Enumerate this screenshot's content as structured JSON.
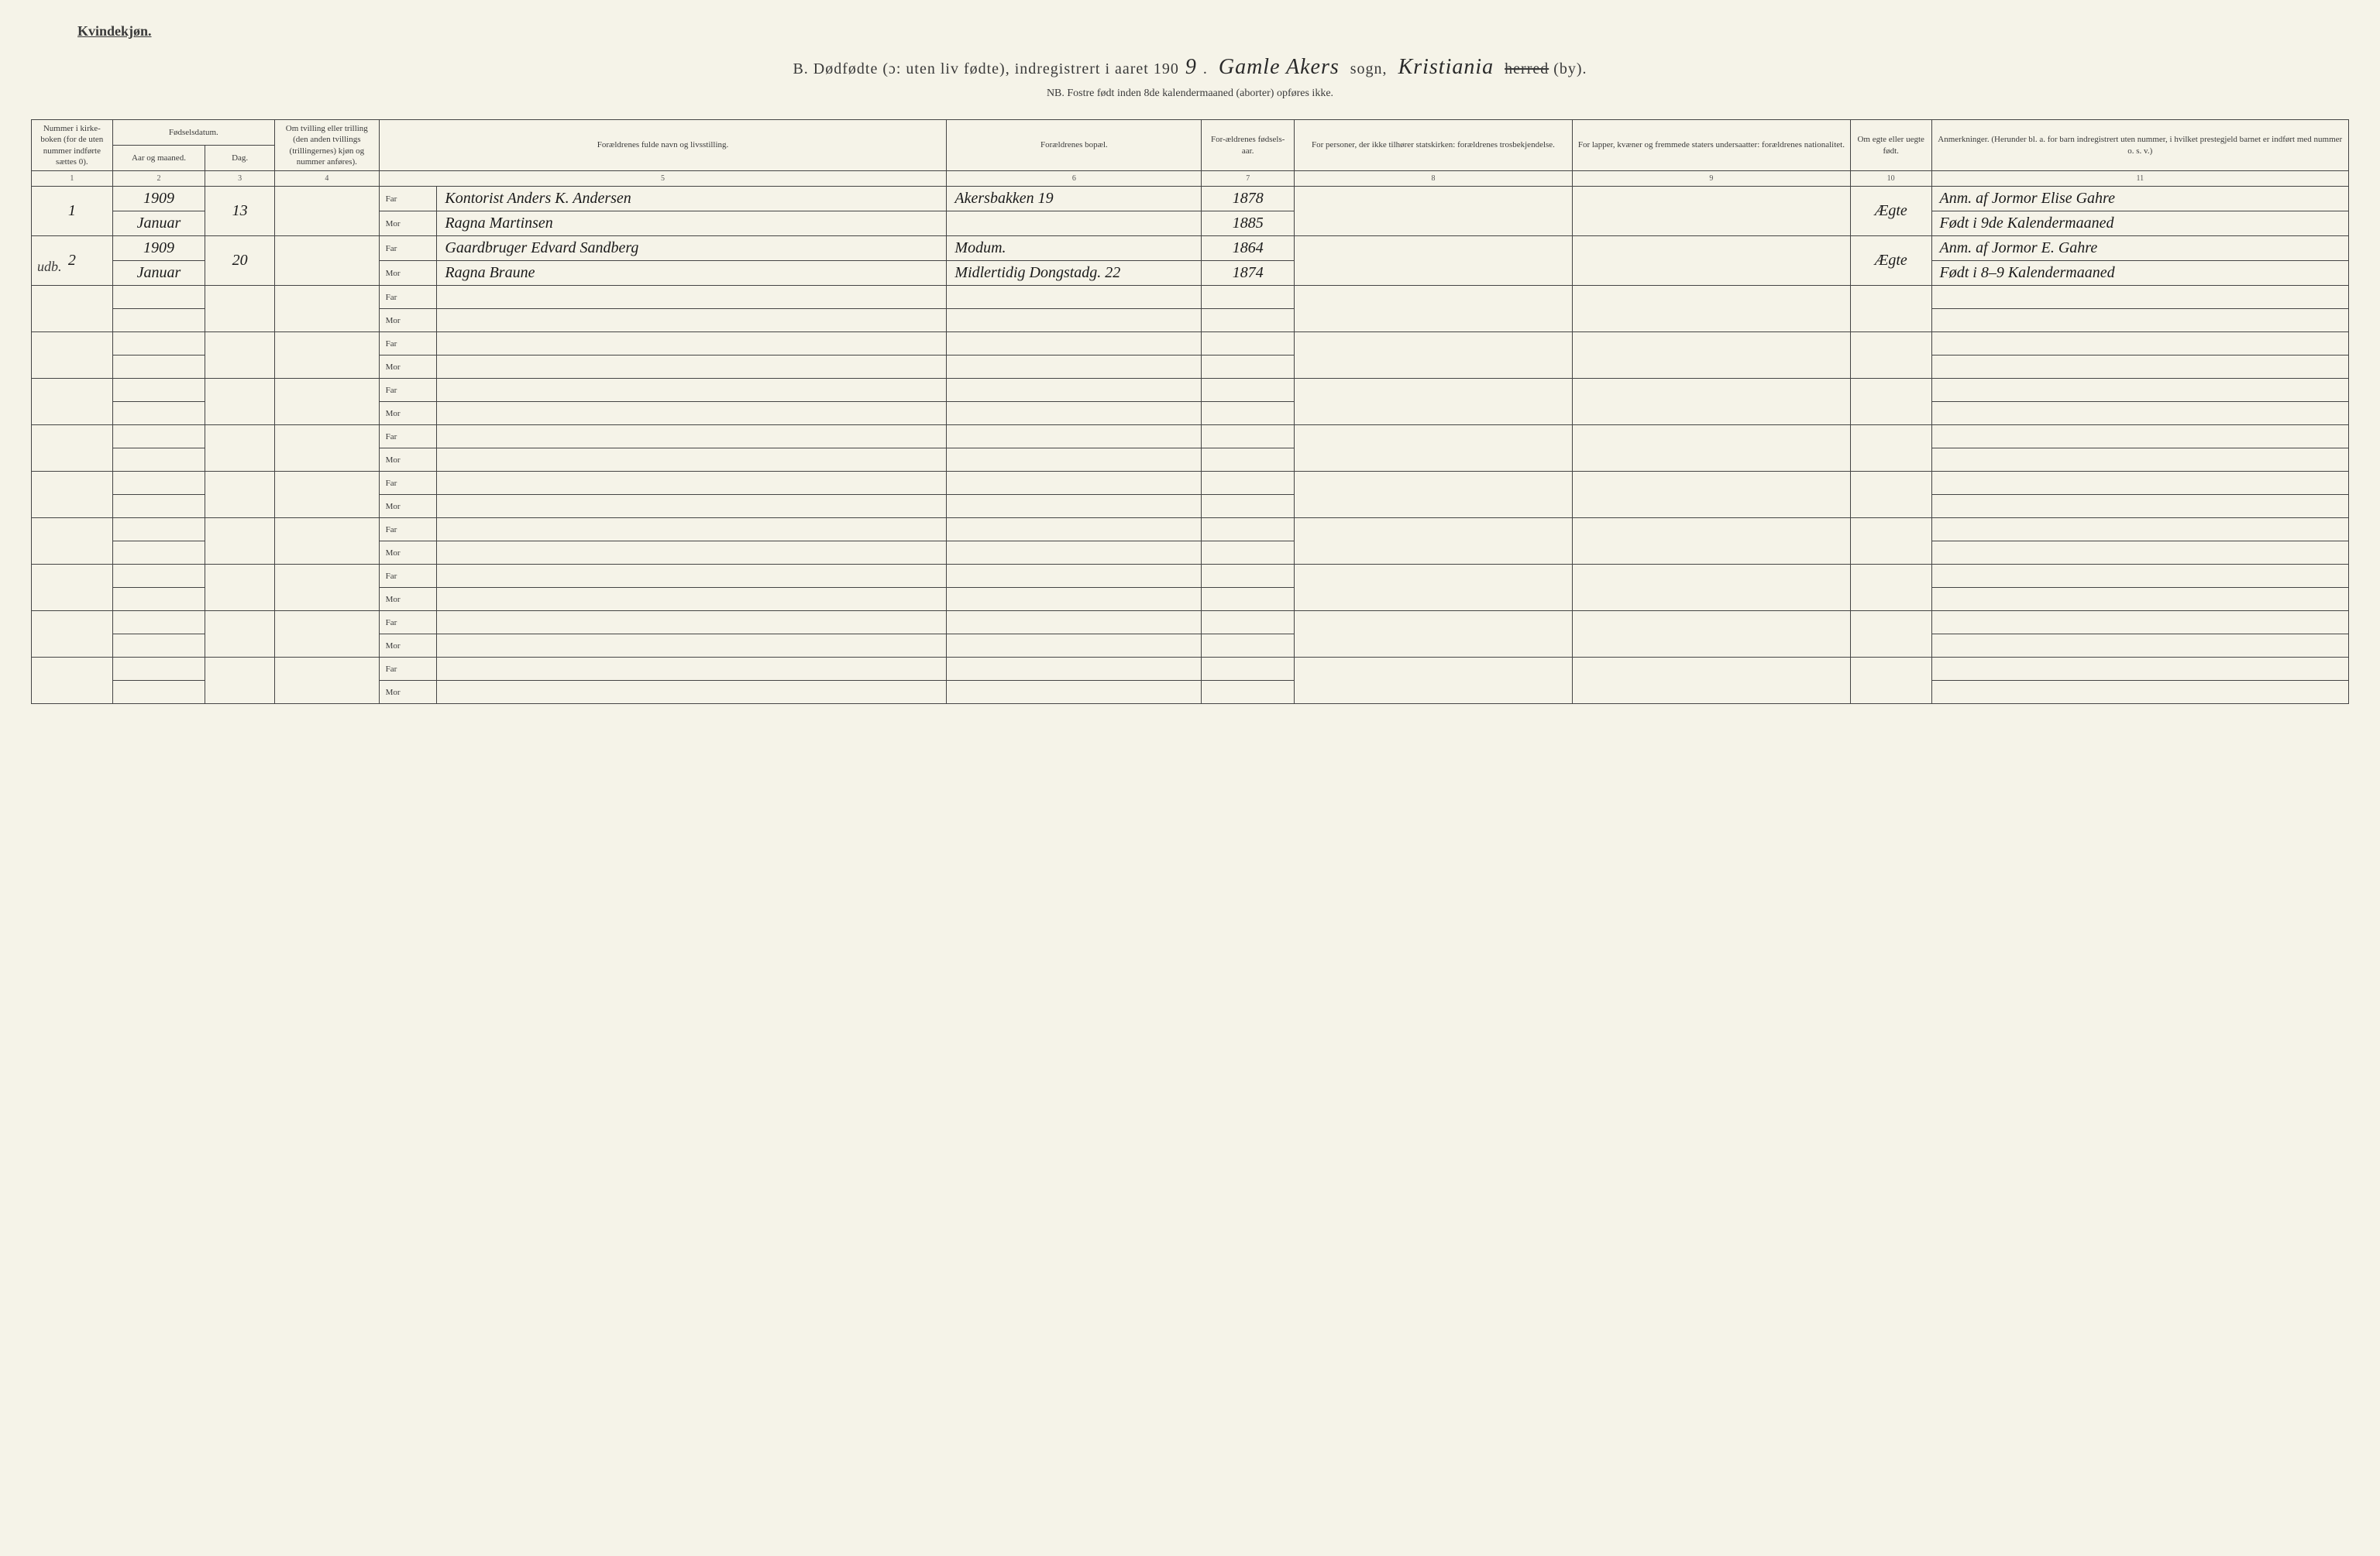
{
  "header": {
    "gender": "Kvindekjøn.",
    "title_prefix": "B.  Dødfødte (ɔ: uten liv fødte), indregistrert i aaret 190",
    "year_suffix": "9",
    "sogn_label": "sogn,",
    "sogn_value": "Gamle Akers",
    "herred_label_struck": "herred",
    "by_label": "(by).",
    "herred_value": "Kristiania",
    "subtitle": "NB. Fostre født inden 8de kalendermaaned (aborter) opføres ikke."
  },
  "columns": {
    "c1": "Nummer i kirke-boken (for de uten nummer indførte sættes 0).",
    "c2_group": "Fødselsdatum.",
    "c2a": "Aar og maaned.",
    "c2b": "Dag.",
    "c4": "Om tvilling eller trilling (den anden tvillings (trillingernes) kjøn og nummer anføres).",
    "c5": "Forældrenes fulde navn og livsstilling.",
    "c6": "Forældrenes bopæl.",
    "c7": "For-ældrenes fødsels-aar.",
    "c8": "For personer, der ikke tilhører statskirken: forældrenes trosbekjendelse.",
    "c9": "For lapper, kvæner og fremmede staters undersaatter: forældrenes nationalitet.",
    "c10": "Om egte eller uegte født.",
    "c11": "Anmerkninger. (Herunder bl. a. for barn indregistrert uten nummer, i hvilket prestegjeld barnet er indført med nummer o. s. v.)"
  },
  "colnums": [
    "1",
    "2",
    "3",
    "4",
    "5",
    "6",
    "7",
    "8",
    "9",
    "10",
    "11"
  ],
  "farmor": {
    "far": "Far",
    "mor": "Mor"
  },
  "rows": [
    {
      "num": "1",
      "year_month_top": "1909",
      "year_month_bot": "Januar",
      "day": "13",
      "twin": "",
      "far": "Kontorist Anders K. Andersen",
      "mor": "Ragna Martinsen",
      "bopel_top": "Akersbakken 19",
      "bopel_bot": "",
      "faar_far": "1878",
      "faar_mor": "1885",
      "tros": "",
      "nat": "",
      "egte": "Ægte",
      "anm_top": "Anm. af Jormor Elise Gahre",
      "anm_bot": "Født i 9de Kalendermaaned",
      "margin": ""
    },
    {
      "num": "2",
      "year_month_top": "1909",
      "year_month_bot": "Januar",
      "day": "20",
      "twin": "",
      "far": "Gaardbruger Edvard Sandberg",
      "mor": "Ragna Braune",
      "bopel_top": "Modum.",
      "bopel_bot": "Midlertidig Dongstadg. 22",
      "faar_far": "1864",
      "faar_mor": "1874",
      "tros": "",
      "nat": "",
      "egte": "Ægte",
      "anm_top": "Anm. af Jormor E. Gahre",
      "anm_bot": "Født i 8–9 Kalendermaaned",
      "margin": "udb."
    }
  ],
  "empty_row_count": 9
}
